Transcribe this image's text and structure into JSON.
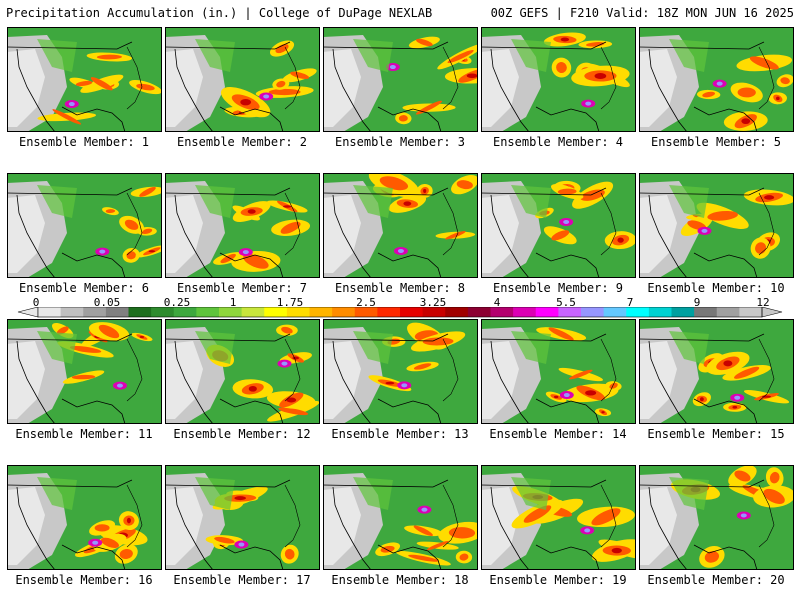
{
  "title_left": "Precipitation Accumulation (in.) | College of DuPage NEXLAB",
  "title_right": "00Z GEFS | F210 Valid: 18Z MON JUN 16 2025",
  "member_prefix": "Ensemble Member:",
  "members": [
    "Ensemble Member: 1",
    "Ensemble Member: 2",
    "Ensemble Member: 3",
    "Ensemble Member: 4",
    "Ensemble Member: 5",
    "Ensemble Member: 6",
    "Ensemble Member: 7",
    "Ensemble Member: 8",
    "Ensemble Member: 9",
    "Ensemble Member: 10",
    "Ensemble Member: 11",
    "Ensemble Member: 12",
    "Ensemble Member: 13",
    "Ensemble Member: 14",
    "Ensemble Member: 15",
    "Ensemble Member: 16",
    "Ensemble Member: 17",
    "Ensemble Member: 18",
    "Ensemble Member: 19",
    "Ensemble Member: 20"
  ],
  "colorbar": {
    "ticks": [
      "0",
      "0.05",
      "0.25",
      "1",
      "1.75",
      "2.5",
      "3.25",
      "4",
      "5.5",
      "7",
      "9",
      "12"
    ],
    "colors": [
      "#e8e8e8",
      "#c0c0c0",
      "#a0a0a0",
      "#808080",
      "#1e6e1e",
      "#2e8b2e",
      "#3ea83e",
      "#5fc43c",
      "#8fd63c",
      "#c8e63c",
      "#ffff00",
      "#ffdc00",
      "#ffb400",
      "#ff8c00",
      "#ff5a00",
      "#ff2800",
      "#e60000",
      "#c80000",
      "#a00000",
      "#8c0032",
      "#b4006e",
      "#dc00b4",
      "#ff00ff",
      "#c864ff",
      "#9696ff",
      "#64c8ff",
      "#00ffff",
      "#00d2d2",
      "#00a0a0",
      "#787878",
      "#a0a0a0",
      "#c8c8c8"
    ]
  }
}
